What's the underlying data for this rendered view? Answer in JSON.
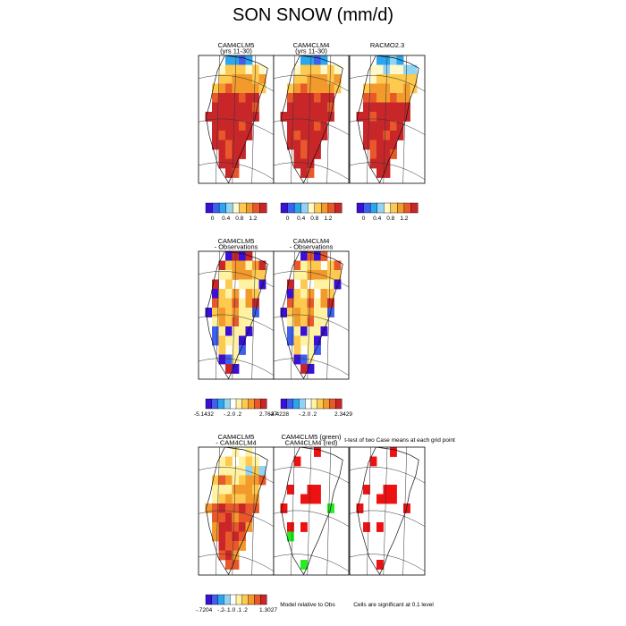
{
  "title": "SON SNOW (mm/d)",
  "chart_data": {
    "type": "heatmap",
    "title": "SON SNOW (mm/d)",
    "panels": [
      {
        "id": "cam4clm5",
        "row": 1,
        "col": 1,
        "title_lines": [
          "CAM4CLM5",
          "(yrs 11-30)"
        ],
        "kind": "abs",
        "pattern": "model"
      },
      {
        "id": "cam4clm4",
        "row": 1,
        "col": 2,
        "title_lines": [
          "CAM4CLM4",
          "(yrs 11-30)"
        ],
        "kind": "abs",
        "pattern": "model"
      },
      {
        "id": "racmo",
        "row": 1,
        "col": 3,
        "title_lines": [
          "RACMO2.3"
        ],
        "kind": "abs",
        "pattern": "obs"
      },
      {
        "id": "clm5-obs",
        "row": 2,
        "col": 1,
        "title_lines": [
          "CAM4CLM5",
          "- Observations"
        ],
        "kind": "diff",
        "pattern": "diff5"
      },
      {
        "id": "clm4-obs",
        "row": 2,
        "col": 2,
        "title_lines": [
          "CAM4CLM4",
          "- Observations"
        ],
        "kind": "diff",
        "pattern": "diff4"
      },
      {
        "id": "clm5-clm4",
        "row": 3,
        "col": 1,
        "title_lines": [
          "CAM4CLM5",
          "- CAM4CLM4"
        ],
        "kind": "diff",
        "pattern": "diff54"
      },
      {
        "id": "model-rel",
        "row": 3,
        "col": 2,
        "title_lines": [
          "CAM4CLM5 (green)",
          "CAM4CLM4 (red)"
        ],
        "kind": "sig",
        "pattern": "rel"
      },
      {
        "id": "sig",
        "row": 3,
        "col": 3,
        "title_lines": [],
        "kind": "sig",
        "pattern": "sig"
      }
    ],
    "colorbars": [
      {
        "row": 1,
        "col": 1,
        "palette": "abs",
        "labels": [
          "0",
          "0.4",
          "0.8",
          "1.2"
        ]
      },
      {
        "row": 1,
        "col": 2,
        "palette": "abs",
        "labels": [
          "0",
          "0.4",
          "0.8",
          "1.2"
        ]
      },
      {
        "row": 1,
        "col": 3,
        "palette": "abs",
        "labels": [
          "0",
          "0.4",
          "0.8",
          "1.2"
        ]
      },
      {
        "row": 2,
        "col": 1,
        "palette": "diff",
        "labels": [
          "-5.1432",
          "-.2",
          ".0",
          ".2",
          "2.7627"
        ]
      },
      {
        "row": 2,
        "col": 2,
        "palette": "diff",
        "labels": [
          "-4.4228",
          "-.2",
          ".0",
          ".2",
          "2.3429"
        ]
      },
      {
        "row": 3,
        "col": 1,
        "palette": "diff",
        "labels": [
          "-.7204",
          "-.2",
          "-.1",
          ".0",
          ".1",
          ".2",
          "1.3027"
        ]
      }
    ],
    "annotations": {
      "t_test": "t-test of two Case means at each grid point",
      "model_rel": "Model relative to Obs",
      "sig_level": "Cells are significant at 0.1 level"
    },
    "palettes": {
      "abs": [
        "#3a0fd6",
        "#3f5fef",
        "#2aa5ee",
        "#8fd4f4",
        "#fff8c8",
        "#fdc94f",
        "#f39a2c",
        "#e8582a",
        "#c9262a"
      ],
      "diff": [
        "#3a0fd6",
        "#3f5fef",
        "#2aa5ee",
        "#8fd4f4",
        "#ffffff",
        "#fff3a3",
        "#fdc94f",
        "#f39a2c",
        "#e8582a",
        "#c9262a"
      ],
      "sig_red": "#ee1111",
      "sig_green": "#22ee22"
    }
  }
}
